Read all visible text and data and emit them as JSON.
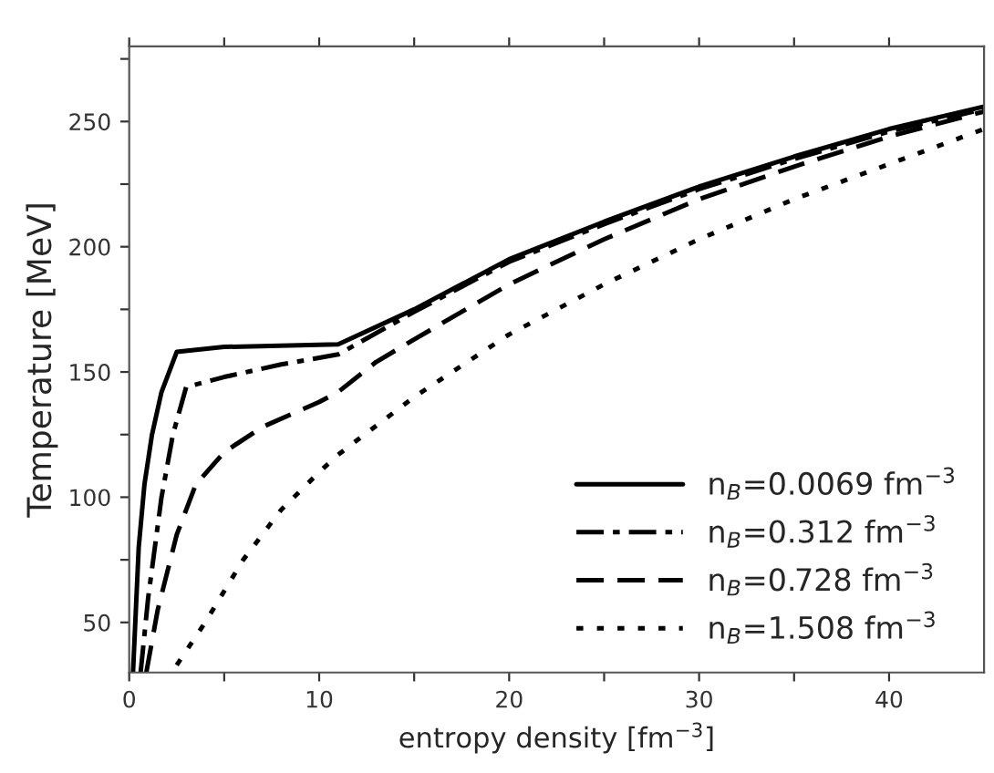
{
  "chart_data": {
    "type": "line",
    "xlabel": "entropy density [fm$^{−3}$]",
    "ylabel": "Temperature [MeV]",
    "xlim": [
      0,
      45
    ],
    "ylim": [
      30,
      280
    ],
    "xticks": [
      0,
      {
        "value": 5,
        "label": null
      },
      10,
      {
        "value": 15,
        "label": null
      },
      20,
      {
        "value": 25,
        "label": null
      },
      30,
      {
        "value": 35,
        "label": null
      },
      40
    ],
    "yticks": [
      50,
      {
        "value": 75,
        "label": null
      },
      100,
      {
        "value": 125,
        "label": null
      },
      150,
      {
        "value": 175,
        "label": null
      },
      200,
      {
        "value": 225,
        "label": null
      },
      250,
      {
        "value": 275,
        "label": null
      }
    ],
    "legend": "bottom right",
    "grid": false,
    "series": [
      {
        "name": "n$_{B}$=0.0069 fm$^{−3}$",
        "color": "#000000",
        "line_style": "solid",
        "x": [
          0.2,
          0.5,
          0.8,
          1.2,
          1.7,
          2.5,
          5,
          11,
          15,
          20,
          25,
          30,
          35,
          40,
          45
        ],
        "values": [
          30,
          80,
          105,
          125,
          142,
          158,
          160,
          161,
          175,
          195,
          210,
          224,
          236,
          247,
          256
        ]
      },
      {
        "name": "n$_{B}$=0.312 fm$^{−3}$",
        "color": "#000000",
        "line_style": "dashdot",
        "x": [
          0.6,
          1,
          1.7,
          2.3,
          3,
          5,
          8,
          11,
          15,
          20,
          25,
          30,
          35,
          40,
          45
        ],
        "values": [
          30,
          60,
          100,
          125,
          144,
          148,
          153,
          157,
          174,
          194,
          209,
          223,
          235,
          246,
          255
        ]
      },
      {
        "name": "n$_{B}$=0.728 fm$^{−3}$",
        "color": "#000000",
        "line_style": "dashed",
        "x": [
          0.9,
          1.5,
          2.5,
          3.5,
          5,
          7,
          10,
          11,
          13,
          15,
          20,
          25,
          30,
          35,
          40,
          45
        ],
        "values": [
          30,
          55,
          85,
          105,
          118,
          128,
          138,
          142,
          154,
          163,
          185,
          203,
          219,
          232,
          244,
          254
        ]
      },
      {
        "name": "n$_{B}$=1.508 fm$^{−3}$",
        "color": "#000000",
        "line_style": "dotted",
        "x": [
          2.5,
          4,
          6,
          8,
          10,
          11,
          15,
          20,
          25,
          30,
          35,
          40,
          45
        ],
        "values": [
          33,
          50,
          75,
          95,
          110,
          117,
          140,
          165,
          185,
          203,
          219,
          233,
          247
        ]
      }
    ]
  }
}
